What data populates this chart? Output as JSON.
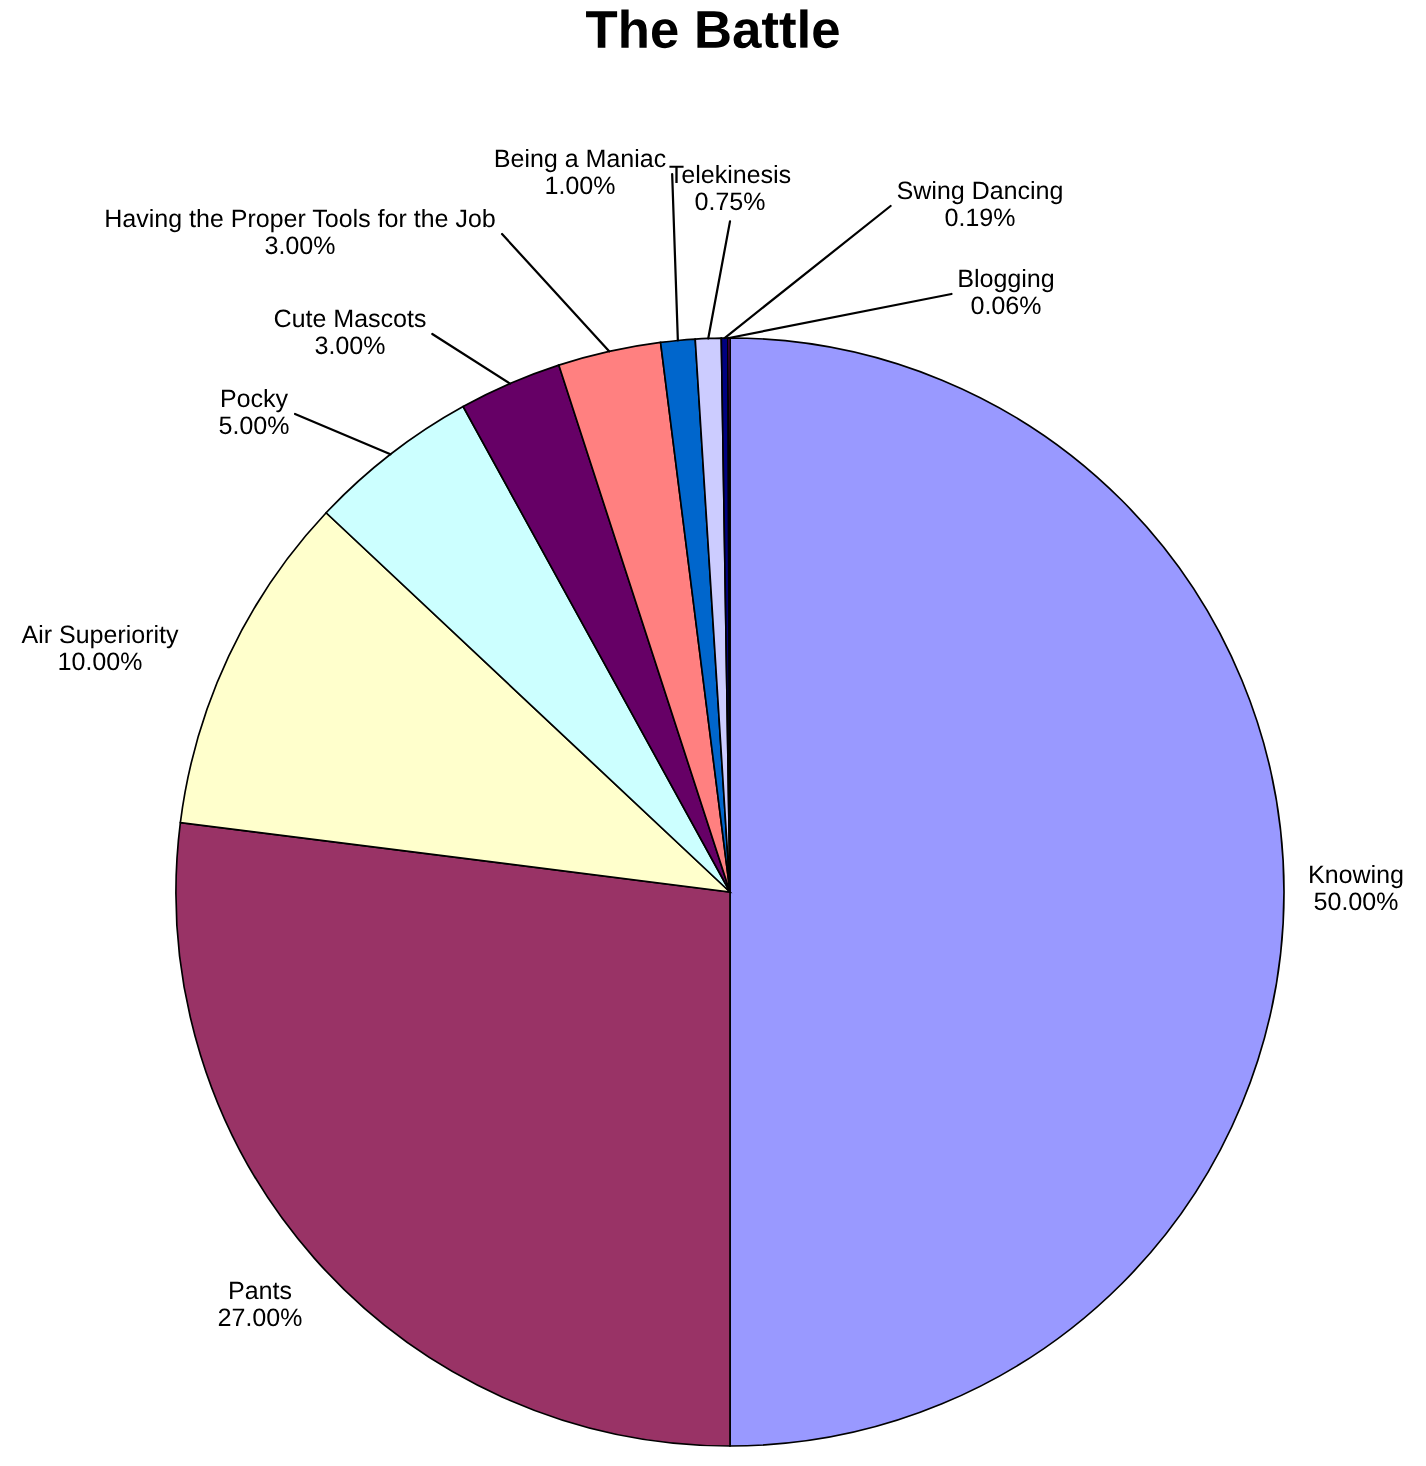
{
  "chart_data": {
    "type": "pie",
    "title": "The Battle",
    "categories": [
      "Knowing",
      "Pants",
      "Air Superiority",
      "Pocky",
      "Cute Mascots",
      "Having the Proper Tools for the Job",
      "Being a Maniac",
      "Telekinesis",
      "Swing Dancing",
      "Blogging"
    ],
    "values": [
      50,
      27,
      10,
      5,
      3,
      3,
      1,
      0.75,
      0.19,
      0.06
    ],
    "value_labels": [
      "50.00%",
      "27.00%",
      "10.00%",
      "5.00%",
      "3.00%",
      "3.00%",
      "1.00%",
      "0.75%",
      "0.19%",
      "0.06%"
    ],
    "colors": [
      "#9999ff",
      "#993366",
      "#ffffcc",
      "#ccffff",
      "#660066",
      "#ff8080",
      "#0066cc",
      "#ccccff",
      "#000080",
      "#ff00ff"
    ],
    "legend": false
  }
}
